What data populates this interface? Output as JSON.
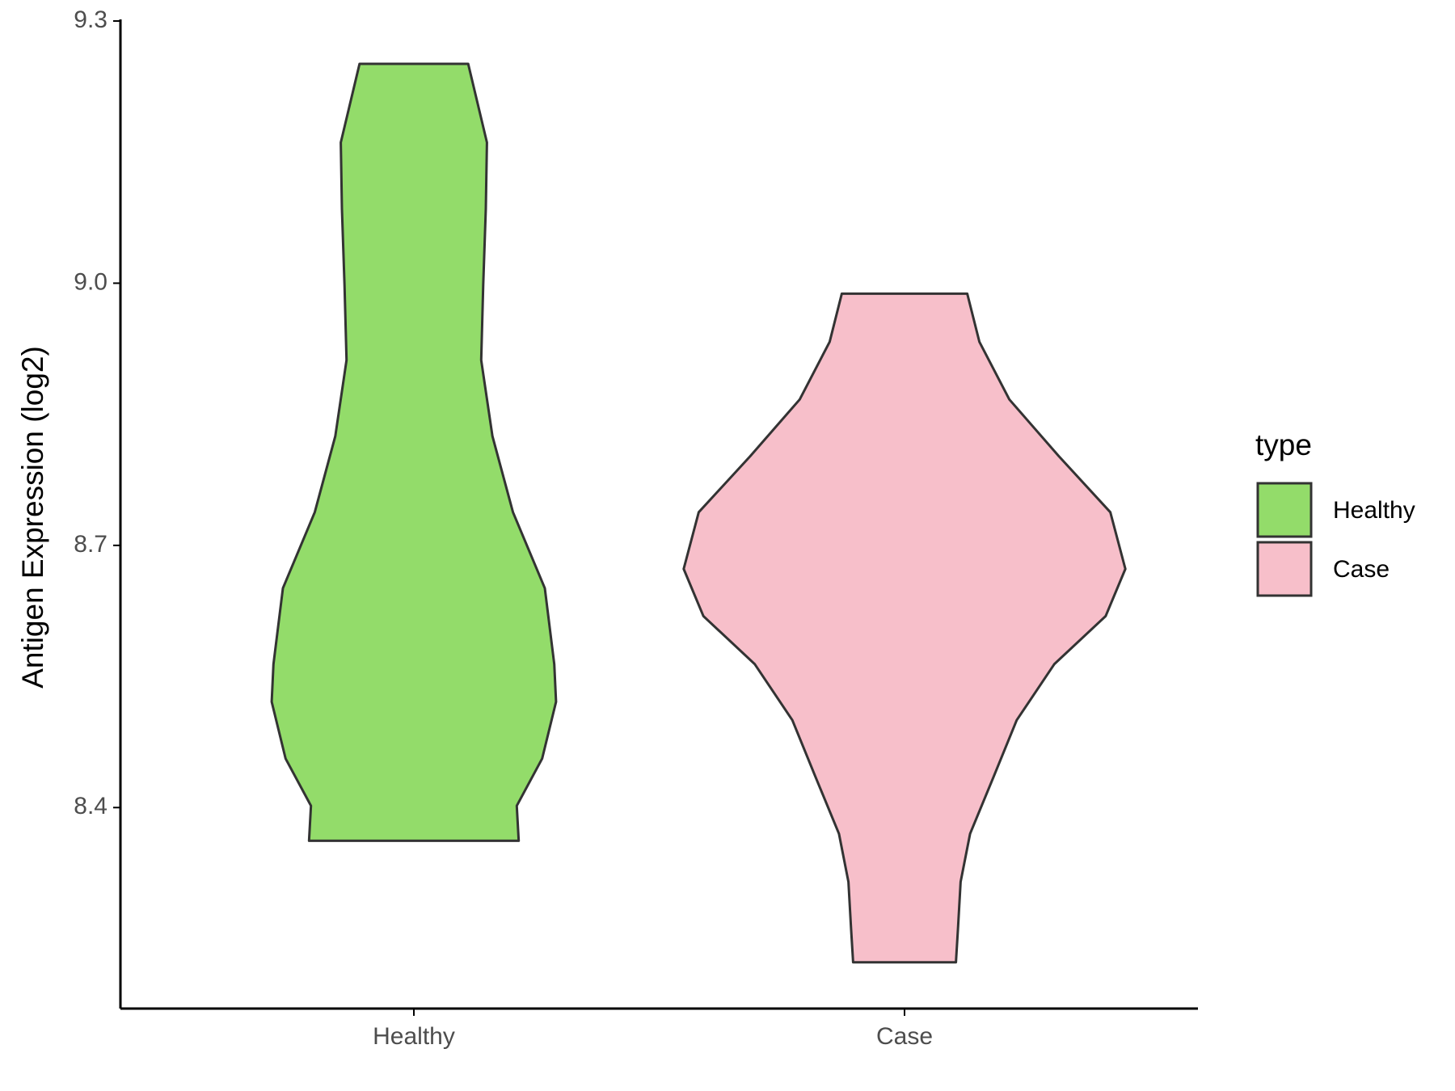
{
  "chart_data": {
    "type": "violin",
    "y_label": "Antigen Expression (log2)",
    "categories": [
      "Healthy",
      "Case"
    ],
    "legend_title": "type",
    "legend_position": "right",
    "ylim": [
      8.17,
      9.3
    ],
    "yticks": [
      8.4,
      8.7,
      {
        "value": 9,
        "label": "9.0"
      },
      9.3
    ],
    "grid": false,
    "series": [
      {
        "name": "Healthy",
        "color": "#93dc6a",
        "y": [
          9.251,
          9.161,
          9.085,
          8.998,
          8.912,
          8.825,
          8.738,
          8.651,
          8.564,
          8.521,
          8.456,
          8.402,
          8.362
        ],
        "density": [
          0.246,
          0.331,
          0.326,
          0.314,
          0.305,
          0.356,
          0.449,
          0.593,
          0.636,
          0.644,
          0.581,
          0.466,
          0.475
        ]
      },
      {
        "name": "Case",
        "color": "#f7bfca",
        "y": [
          8.988,
          8.933,
          8.867,
          8.802,
          8.738,
          8.673,
          8.619,
          8.564,
          8.5,
          8.435,
          8.37,
          8.315,
          8.261,
          8.223
        ],
        "density": [
          0.284,
          0.339,
          0.475,
          0.699,
          0.932,
          1.0,
          0.911,
          0.678,
          0.508,
          0.403,
          0.297,
          0.254,
          0.242,
          0.233
        ]
      }
    ]
  }
}
